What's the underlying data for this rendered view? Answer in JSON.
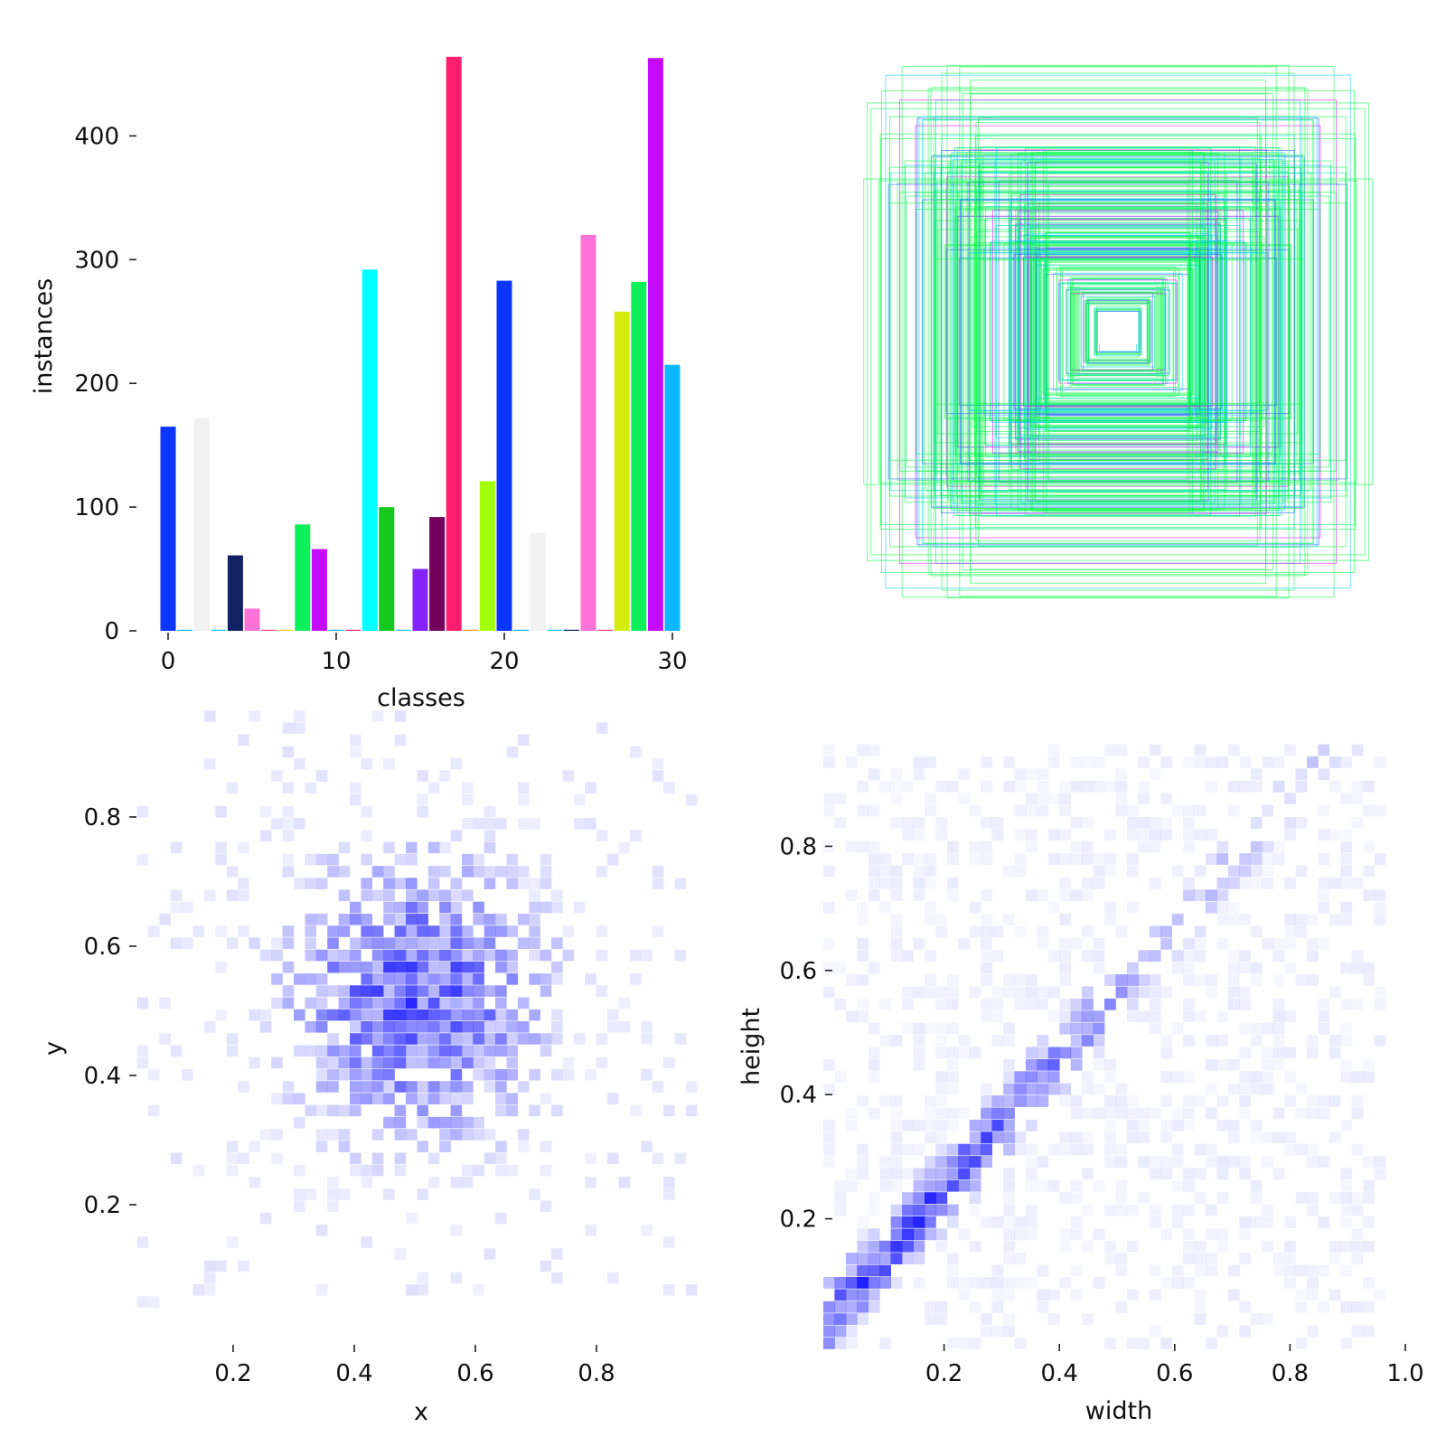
{
  "chart_data": [
    {
      "type": "bar",
      "xlabel": "classes",
      "ylabel": "instances",
      "xlim": [
        -1,
        31
      ],
      "ylim": [
        0,
        465
      ],
      "x_ticks": [
        "0",
        "10",
        "20",
        "30"
      ],
      "y_ticks": [
        "0",
        "100",
        "200",
        "300",
        "400"
      ],
      "categories": [
        0,
        1,
        2,
        3,
        4,
        5,
        6,
        7,
        8,
        9,
        10,
        11,
        12,
        13,
        14,
        15,
        16,
        17,
        18,
        19,
        20,
        21,
        22,
        23,
        24,
        25,
        26,
        27,
        28,
        29,
        30
      ],
      "values": [
        165,
        0,
        172,
        0,
        61,
        18,
        0,
        0,
        86,
        66,
        0,
        0,
        292,
        100,
        0,
        50,
        92,
        464,
        0,
        121,
        283,
        0,
        79,
        0,
        0,
        320,
        0,
        258,
        282,
        463,
        215
      ],
      "colors": [
        "#0a36ff",
        "#0cb8ff",
        "#f1f1f1",
        "#16c4ff",
        "#122064",
        "#ff72d6",
        "#ff3f7c",
        "#ffd51a",
        "#0ef059",
        "#c40bff",
        "#0eb8ff",
        "#f12f80",
        "#00ffff",
        "#14c81e",
        "#1cc8e8",
        "#8423ff",
        "#74005e",
        "#ff1e6c",
        "#ff9b1a",
        "#a2ff06",
        "#0a36ff",
        "#0cb8ff",
        "#f1f1f1",
        "#16c4ff",
        "#122064",
        "#ff72d6",
        "#ff3f7c",
        "#d4ec0e",
        "#0ef059",
        "#c40bff",
        "#0cb8ff"
      ]
    },
    {
      "type": "boxes",
      "description_colors": [
        "#00ff3e",
        "#00c8ff",
        "#2b53ff",
        "#e600ff",
        "#00e6b4"
      ]
    },
    {
      "type": "heatmap",
      "xlabel": "x",
      "ylabel": "y",
      "xlim": [
        0.0,
        1.0
      ],
      "ylim": [
        0.0,
        1.0
      ],
      "x_ticks": [
        "0.2",
        "0.4",
        "0.6",
        "0.8"
      ],
      "y_ticks": [
        "0.2",
        "0.4",
        "0.6",
        "0.8"
      ],
      "color": "#0000ff",
      "distribution": "broad blob centered near (0.5, 0.5), spread about 0.18"
    },
    {
      "type": "heatmap",
      "xlabel": "width",
      "ylabel": "height",
      "xlim": [
        0.0,
        1.0
      ],
      "ylim": [
        0.0,
        1.0
      ],
      "x_ticks": [
        "0.2",
        "0.4",
        "0.6",
        "0.8",
        "1.0"
      ],
      "y_ticks": [
        "0.2",
        "0.4",
        "0.6",
        "0.8"
      ],
      "color": "#0000ff",
      "distribution": "strong diagonal band from (0.1,0.15) to (0.7,0.75), densest at small sizes"
    }
  ]
}
